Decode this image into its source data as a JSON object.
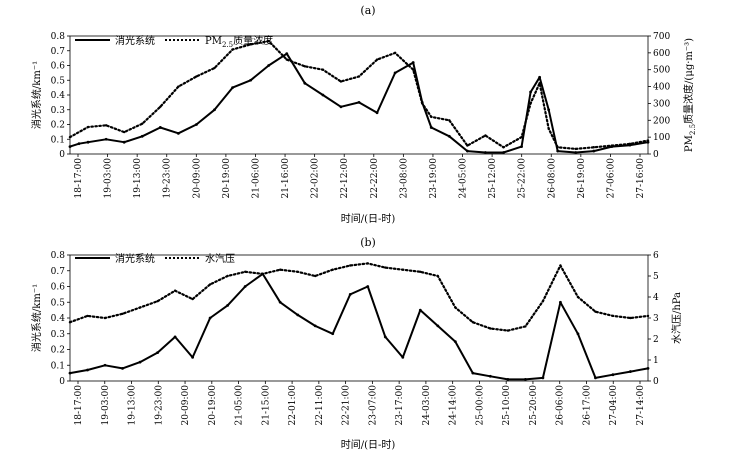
{
  "chart_data": [
    {
      "type": "line",
      "panel_label": "(a)",
      "xlabel": "时间/(日-时)",
      "ylabel": "消光系统/km⁻¹",
      "y2label_pre": "PM",
      "y2label_sub": "2.5",
      "y2label_post": "质量浓度/(μg·m⁻³)",
      "ylim": [
        0,
        0.8
      ],
      "y2lim": [
        0,
        700
      ],
      "yticks": [
        "0",
        "0.1",
        "0.2",
        "0.3",
        "0.4",
        "0.5",
        "0.6",
        "0.7",
        "0.8"
      ],
      "y2ticks": [
        "0",
        "100",
        "200",
        "300",
        "400",
        "500",
        "600",
        "700"
      ],
      "xticks": [
        "18-17:00",
        "19-03:00",
        "19-13:00",
        "19-23:00",
        "20-09:00",
        "20-19:00",
        "21-06:00",
        "21-16:00",
        "22-02:00",
        "22-12:00",
        "22-22:00",
        "23-08:00",
        "23-19:00",
        "24-05:00",
        "25-12:00",
        "25-22:00",
        "26-08:00",
        "26-19:00",
        "27-06:00",
        "27-16:00"
      ],
      "legend_placement": "top-left",
      "series": [
        {
          "name": "消光系统",
          "axis": "left",
          "style": "solid",
          "points": [
            [
              0,
              0.05
            ],
            [
              0.5,
              0.07
            ],
            [
              1,
              0.08
            ],
            [
              2,
              0.1
            ],
            [
              3,
              0.08
            ],
            [
              4,
              0.12
            ],
            [
              5,
              0.18
            ],
            [
              6,
              0.14
            ],
            [
              7,
              0.2
            ],
            [
              8,
              0.3
            ],
            [
              9,
              0.45
            ],
            [
              10,
              0.5
            ],
            [
              11,
              0.6
            ],
            [
              12,
              0.68
            ],
            [
              13,
              0.48
            ],
            [
              14,
              0.4
            ],
            [
              15,
              0.32
            ],
            [
              16,
              0.35
            ],
            [
              17,
              0.28
            ],
            [
              18,
              0.55
            ],
            [
              19,
              0.62
            ],
            [
              19.5,
              0.35
            ],
            [
              20,
              0.18
            ],
            [
              21,
              0.12
            ],
            [
              22,
              0.02
            ],
            [
              23,
              0.01
            ],
            [
              24,
              0.01
            ],
            [
              25,
              0.05
            ],
            [
              25.5,
              0.42
            ],
            [
              26,
              0.52
            ],
            [
              26.5,
              0.3
            ],
            [
              27,
              0.02
            ],
            [
              28,
              0.01
            ],
            [
              29,
              0.02
            ],
            [
              30,
              0.05
            ],
            [
              31,
              0.06
            ],
            [
              32,
              0.08
            ]
          ]
        },
        {
          "name": "PM",
          "name_sub": "2.5",
          "name_post": "质量浓度",
          "axis": "right",
          "style": "dotted",
          "points": [
            [
              0,
              100
            ],
            [
              1,
              160
            ],
            [
              2,
              170
            ],
            [
              3,
              130
            ],
            [
              4,
              180
            ],
            [
              5,
              280
            ],
            [
              6,
              400
            ],
            [
              7,
              460
            ],
            [
              8,
              510
            ],
            [
              9,
              620
            ],
            [
              10,
              650
            ],
            [
              11,
              670
            ],
            [
              12,
              560
            ],
            [
              13,
              520
            ],
            [
              14,
              500
            ],
            [
              15,
              430
            ],
            [
              16,
              460
            ],
            [
              17,
              560
            ],
            [
              18,
              600
            ],
            [
              19,
              500
            ],
            [
              19.5,
              300
            ],
            [
              20,
              220
            ],
            [
              21,
              200
            ],
            [
              22,
              50
            ],
            [
              23,
              110
            ],
            [
              24,
              40
            ],
            [
              25,
              100
            ],
            [
              25.5,
              300
            ],
            [
              26,
              420
            ],
            [
              26.5,
              150
            ],
            [
              27,
              40
            ],
            [
              28,
              30
            ],
            [
              29,
              40
            ],
            [
              30,
              50
            ],
            [
              31,
              60
            ],
            [
              32,
              80
            ]
          ]
        }
      ]
    },
    {
      "type": "line",
      "panel_label": "(b)",
      "xlabel": "时间/(日-时)",
      "ylabel": "消光系统/km⁻¹",
      "y2label": "水汽压/hPa",
      "ylim": [
        0,
        0.8
      ],
      "y2lim": [
        0,
        6
      ],
      "yticks": [
        "0",
        "0.1",
        "0.2",
        "0.3",
        "0.4",
        "0.5",
        "0.6",
        "0.7",
        "0.8"
      ],
      "y2ticks": [
        "0",
        "1",
        "2",
        "3",
        "4",
        "5",
        "6"
      ],
      "xticks": [
        "18-17:00",
        "19-03:00",
        "19-13:00",
        "19-23:00",
        "20-09:00",
        "20-19:00",
        "21-05:00",
        "21-15:00",
        "22-01:00",
        "22-11:00",
        "22-21:00",
        "23-07:00",
        "23-17:00",
        "24-03:00",
        "24-14:00",
        "25-00:00",
        "25-10:00",
        "25-20:00",
        "26-06:00",
        "26-17:00",
        "27-04:00",
        "27-14:00"
      ],
      "legend_placement": "top-left",
      "series": [
        {
          "name": "消光系统",
          "axis": "left",
          "style": "solid",
          "points": [
            [
              0,
              0.05
            ],
            [
              1,
              0.07
            ],
            [
              2,
              0.1
            ],
            [
              3,
              0.08
            ],
            [
              4,
              0.12
            ],
            [
              5,
              0.18
            ],
            [
              6,
              0.28
            ],
            [
              7,
              0.15
            ],
            [
              8,
              0.4
            ],
            [
              9,
              0.48
            ],
            [
              10,
              0.6
            ],
            [
              11,
              0.68
            ],
            [
              12,
              0.5
            ],
            [
              13,
              0.42
            ],
            [
              14,
              0.35
            ],
            [
              15,
              0.3
            ],
            [
              16,
              0.55
            ],
            [
              17,
              0.6
            ],
            [
              18,
              0.28
            ],
            [
              19,
              0.15
            ],
            [
              20,
              0.45
            ],
            [
              21,
              0.35
            ],
            [
              22,
              0.25
            ],
            [
              23,
              0.05
            ],
            [
              24,
              0.03
            ],
            [
              25,
              0.01
            ],
            [
              26,
              0.01
            ],
            [
              27,
              0.02
            ],
            [
              28,
              0.5
            ],
            [
              29,
              0.3
            ],
            [
              30,
              0.02
            ],
            [
              31,
              0.04
            ],
            [
              32,
              0.06
            ],
            [
              33,
              0.08
            ]
          ]
        },
        {
          "name": "水汽压",
          "axis": "right",
          "style": "dotted",
          "points": [
            [
              0,
              2.8
            ],
            [
              1,
              3.1
            ],
            [
              2,
              3.0
            ],
            [
              3,
              3.2
            ],
            [
              4,
              3.5
            ],
            [
              5,
              3.8
            ],
            [
              6,
              4.3
            ],
            [
              7,
              3.9
            ],
            [
              8,
              4.6
            ],
            [
              9,
              5.0
            ],
            [
              10,
              5.2
            ],
            [
              11,
              5.1
            ],
            [
              12,
              5.3
            ],
            [
              13,
              5.2
            ],
            [
              14,
              5.0
            ],
            [
              15,
              5.3
            ],
            [
              16,
              5.5
            ],
            [
              17,
              5.6
            ],
            [
              18,
              5.4
            ],
            [
              19,
              5.3
            ],
            [
              20,
              5.2
            ],
            [
              21,
              5.0
            ],
            [
              22,
              3.5
            ],
            [
              23,
              2.8
            ],
            [
              24,
              2.5
            ],
            [
              25,
              2.4
            ],
            [
              26,
              2.6
            ],
            [
              27,
              3.8
            ],
            [
              28,
              5.5
            ],
            [
              29,
              4.0
            ],
            [
              30,
              3.3
            ],
            [
              31,
              3.1
            ],
            [
              32,
              3.0
            ],
            [
              33,
              3.1
            ]
          ]
        }
      ]
    }
  ]
}
